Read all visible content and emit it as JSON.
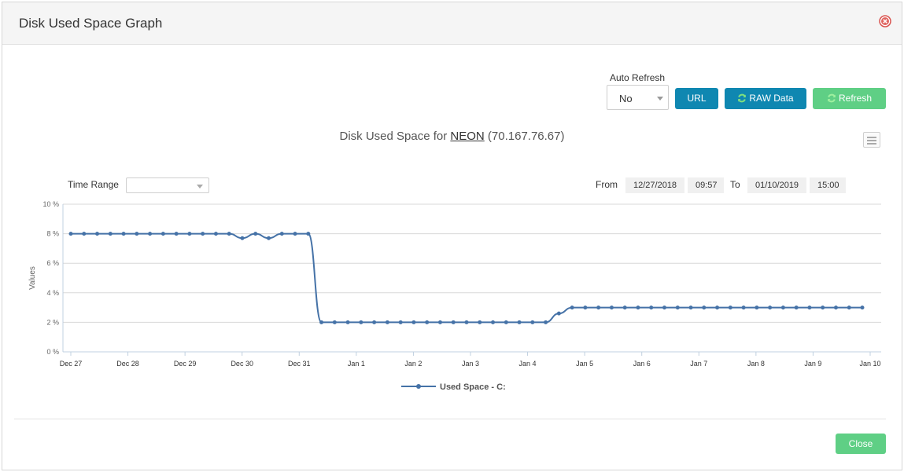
{
  "window": {
    "title": "Disk Used Space Graph"
  },
  "controls": {
    "auto_refresh_label": "Auto Refresh",
    "auto_refresh_value": "No",
    "url_button": "URL",
    "raw_data_button": "RAW Data",
    "refresh_button": "Refresh"
  },
  "chart_header": {
    "prefix": "Disk Used Space for ",
    "host": "NEON",
    "ip": "(70.167.76.67)"
  },
  "filters": {
    "time_range_label": "Time Range",
    "time_range_value": "",
    "from_label": "From",
    "from_date": "12/27/2018",
    "from_time": "09:57",
    "to_label": "To",
    "to_date": "01/10/2019",
    "to_time": "15:00"
  },
  "footer": {
    "close_button": "Close"
  },
  "colors": {
    "series": "#4572a7",
    "primary": "#0f87b1",
    "success": "#5fcf85",
    "close_icon": "#d9534f"
  },
  "chart_data": {
    "type": "line",
    "title": "Disk Used Space for NEON (70.167.76.67)",
    "ylabel": "Values",
    "xlabel": "",
    "ylim": [
      0,
      10
    ],
    "y_ticks": [
      "0 %",
      "2 %",
      "4 %",
      "6 %",
      "8 %",
      "10 %"
    ],
    "x_ticks": [
      "Dec 27",
      "Dec 28",
      "Dec 29",
      "Dec 30",
      "Dec 31",
      "Jan 1",
      "Jan 2",
      "Jan 3",
      "Jan 4",
      "Jan 5",
      "Jan 6",
      "Jan 7",
      "Jan 8",
      "Jan 9",
      "Jan 10"
    ],
    "grid": true,
    "legend_position": "bottom-center",
    "series": [
      {
        "name": "Used Space - C:",
        "values": [
          8,
          8,
          8,
          8,
          8,
          8,
          8,
          8,
          8,
          8,
          8,
          8,
          8,
          7.7,
          8,
          7.7,
          8,
          8,
          8,
          2,
          2,
          2,
          2,
          2,
          2,
          2,
          2,
          2,
          2,
          2,
          2,
          2,
          2,
          2,
          2,
          2,
          2,
          2.6,
          3,
          3,
          3,
          3,
          3,
          3,
          3,
          3,
          3,
          3,
          3,
          3,
          3,
          3,
          3,
          3,
          3,
          3,
          3,
          3,
          3,
          3,
          3
        ]
      }
    ]
  }
}
